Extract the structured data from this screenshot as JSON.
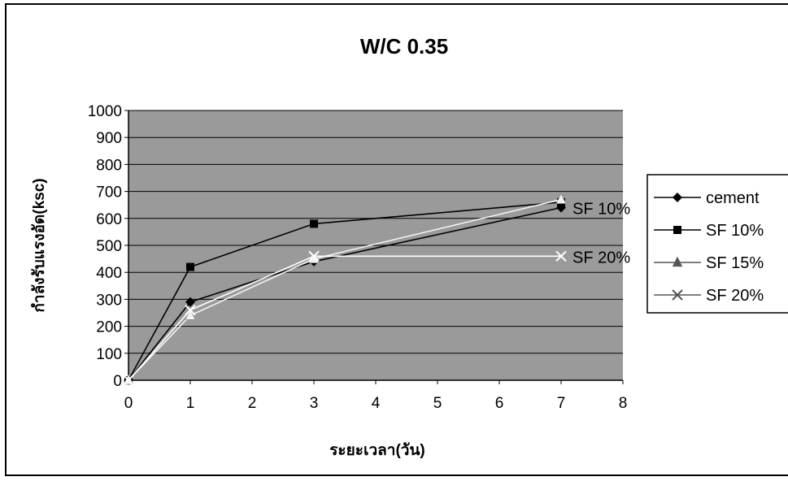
{
  "chart_data": {
    "type": "line",
    "title": "W/C 0.35",
    "xlabel": "ระยะเวลา(วัน)",
    "ylabel": "กำลังรับแรงอัด(ksc)",
    "xlim": [
      0,
      8
    ],
    "ylim": [
      0,
      1000
    ],
    "x_ticks": [
      "0",
      "1",
      "2",
      "3",
      "4",
      "5",
      "6",
      "7",
      "8"
    ],
    "y_ticks": [
      "0",
      "100",
      "200",
      "300",
      "400",
      "500",
      "600",
      "700",
      "800",
      "900",
      "1000"
    ],
    "grid": true,
    "legend_position": "right",
    "plot_background": "#9a9a9a",
    "series": [
      {
        "name": "cement",
        "marker": "diamond",
        "color": "#000000",
        "x": [
          0,
          1,
          3,
          7
        ],
        "y": [
          0,
          290,
          440,
          640
        ]
      },
      {
        "name": "SF 10%",
        "marker": "square",
        "color": "#000000",
        "x": [
          0,
          1,
          3,
          7
        ],
        "y": [
          0,
          420,
          580,
          660
        ]
      },
      {
        "name": "SF 15%",
        "marker": "triangle",
        "color": "#f2f2f2",
        "x": [
          0,
          1,
          3,
          7
        ],
        "y": [
          0,
          240,
          450,
          670
        ]
      },
      {
        "name": "SF 20%",
        "marker": "x",
        "color": "#ffffff",
        "x": [
          0,
          1,
          3,
          7
        ],
        "y": [
          0,
          260,
          460,
          460
        ]
      }
    ],
    "point_labels": [
      {
        "text": "SF 10%",
        "x": 7,
        "y": 640
      },
      {
        "text": "SF 20%",
        "x": 7,
        "y": 460
      }
    ]
  }
}
